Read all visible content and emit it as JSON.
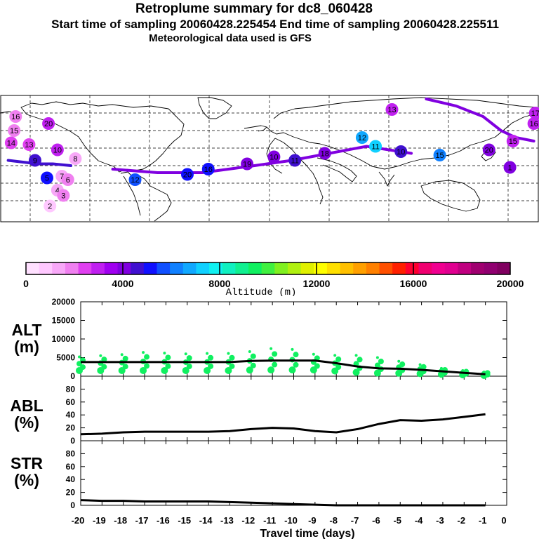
{
  "header": {
    "title": "Retroplume summary for dc8_060428",
    "subtitle": "Start time of sampling 20060428.225454     End time of sampling 20060428.225511",
    "met_line": "Meteorological data used is GFS"
  },
  "colorbar": {
    "label": "Altitude (m)",
    "ticks": [
      "0",
      "4000",
      "8000",
      "12000",
      "16000",
      "20000"
    ],
    "colors": [
      "#ffe0ff",
      "#ffc8ff",
      "#f8a8f8",
      "#f080f0",
      "#e040f0",
      "#c020f0",
      "#a000f0",
      "#8000e0",
      "#4010d0",
      "#1010ff",
      "#1050ff",
      "#1080ff",
      "#10a8ff",
      "#10d0ff",
      "#10f0f0",
      "#10f0c0",
      "#10f090",
      "#10f060",
      "#40f040",
      "#80f020",
      "#b0f010",
      "#e0f000",
      "#ffff00",
      "#ffe000",
      "#ffc000",
      "#ffa000",
      "#ff8000",
      "#ff5000",
      "#ff2000",
      "#ff0030",
      "#f00070",
      "#f00090",
      "#e00090",
      "#c00080",
      "#a00070",
      "#900070",
      "#800060"
    ]
  },
  "map": {
    "markers": [
      {
        "label": "16",
        "lon": -165,
        "lat": 70,
        "alt": 2000
      },
      {
        "label": "20",
        "lon": -143,
        "lat": 66,
        "alt": 2800
      },
      {
        "label": "15",
        "lon": -166,
        "lat": 62,
        "alt": 1800
      },
      {
        "label": "14",
        "lon": -168,
        "lat": 55,
        "alt": 2200
      },
      {
        "label": "13",
        "lon": -156,
        "lat": 54,
        "alt": 2400
      },
      {
        "label": "10",
        "lon": -137,
        "lat": 51,
        "alt": 3000
      },
      {
        "label": "9",
        "lon": -152,
        "lat": 45,
        "alt": 4800
      },
      {
        "label": "8",
        "lon": -125,
        "lat": 46,
        "alt": 1500
      },
      {
        "label": "7",
        "lon": -134,
        "lat": 36,
        "alt": 1400
      },
      {
        "label": "6",
        "lon": -130,
        "lat": 34,
        "alt": 1800
      },
      {
        "label": "5",
        "lon": -144,
        "lat": 35,
        "alt": 5200
      },
      {
        "label": "4",
        "lon": -137,
        "lat": 28,
        "alt": 1500
      },
      {
        "label": "3",
        "lon": -133,
        "lat": 25,
        "alt": 2000
      },
      {
        "label": "2",
        "lon": -142,
        "lat": 19,
        "alt": 900
      },
      {
        "label": "12",
        "lon": -85,
        "lat": 34,
        "alt": 5600
      },
      {
        "label": "20",
        "lon": -50,
        "lat": 37,
        "alt": 5400
      },
      {
        "label": "16",
        "lon": -36,
        "lat": 40,
        "alt": 5000
      },
      {
        "label": "19",
        "lon": -10,
        "lat": 43,
        "alt": 4300
      },
      {
        "label": "10",
        "lon": 8,
        "lat": 47,
        "alt": 4200
      },
      {
        "label": "11",
        "lon": 22,
        "lat": 45,
        "alt": 4400
      },
      {
        "label": "18",
        "lon": 42,
        "lat": 49,
        "alt": 4200
      },
      {
        "label": "12",
        "lon": 67,
        "lat": 58,
        "alt": 6500
      },
      {
        "label": "11",
        "lon": 76,
        "lat": 53,
        "alt": 7500
      },
      {
        "label": "10",
        "lon": 93,
        "lat": 50,
        "alt": 4500
      },
      {
        "label": "15",
        "lon": 119,
        "lat": 48,
        "alt": 6000
      },
      {
        "label": "13",
        "lon": 87,
        "lat": 74,
        "alt": 3200
      },
      {
        "label": "20",
        "lon": 152,
        "lat": 51,
        "alt": 3800
      },
      {
        "label": "1",
        "lon": 166,
        "lat": 41,
        "alt": 4100
      },
      {
        "label": "17",
        "lon": 183,
        "lat": 72,
        "alt": 3000
      },
      {
        "label": "16",
        "lon": 182,
        "lat": 66,
        "alt": 3200
      },
      {
        "label": "15",
        "lon": 168,
        "lat": 56,
        "alt": 3000
      }
    ],
    "tracks": [
      {
        "points": [
          [
            110,
            80
          ],
          [
            130,
            76
          ],
          [
            148,
            70
          ],
          [
            160,
            62
          ],
          [
            170,
            58
          ],
          [
            182,
            56
          ]
        ],
        "alt": 3800
      },
      {
        "points": [
          [
            -170,
            45
          ],
          [
            -150,
            43
          ],
          [
            -140,
            43
          ],
          [
            -128,
            42
          ]
        ],
        "alt": 4600
      },
      {
        "points": [
          [
            -100,
            40
          ],
          [
            -70,
            38
          ],
          [
            -40,
            38
          ],
          [
            -5,
            42
          ],
          [
            20,
            45
          ],
          [
            45,
            49
          ],
          [
            70,
            53
          ],
          [
            100,
            49
          ]
        ],
        "alt": 4300
      }
    ]
  },
  "chart_data": [
    {
      "type": "line",
      "panel": "ALT",
      "title": "ALT",
      "ylabel": "(m)",
      "xlabel": "Travel time (days)",
      "x": [
        -20,
        -19,
        -18,
        -17,
        -16,
        -15,
        -14,
        -13,
        -12,
        -11,
        -10,
        -9,
        -8,
        -7,
        -6,
        -5,
        -4,
        -3,
        -2,
        -1
      ],
      "values": [
        3800,
        3800,
        3800,
        3800,
        3800,
        3800,
        3800,
        3800,
        4100,
        4200,
        4200,
        4200,
        3500,
        2600,
        2100,
        2000,
        1700,
        1300,
        900,
        500
      ],
      "scatter_max": [
        5200,
        5500,
        5800,
        6400,
        6200,
        6000,
        6100,
        6100,
        6600,
        7400,
        7200,
        5900,
        5600,
        5600,
        5000,
        4000,
        3100,
        2100,
        1500,
        1100
      ],
      "ylim": [
        0,
        20000
      ],
      "yticks": [
        "0",
        "5000",
        "10000",
        "15000",
        "20000"
      ]
    },
    {
      "type": "line",
      "panel": "ABL",
      "title": "ABL",
      "ylabel": "(%)",
      "xlabel": "Travel time (days)",
      "x": [
        -20,
        -19,
        -18,
        -17,
        -16,
        -15,
        -14,
        -13,
        -12,
        -11,
        -10,
        -9,
        -8,
        -7,
        -6,
        -5,
        -4,
        -3,
        -2,
        -1
      ],
      "values": [
        10,
        11,
        13,
        14,
        14,
        14,
        14,
        15,
        18,
        20,
        19,
        15,
        13,
        18,
        26,
        32,
        31,
        33,
        37,
        41
      ],
      "ylim": [
        0,
        100
      ],
      "yticks": [
        "0",
        "20",
        "40",
        "60",
        "80"
      ]
    },
    {
      "type": "line",
      "panel": "STR",
      "title": "STR",
      "ylabel": "(%)",
      "xlabel": "Travel time (days)",
      "x": [
        -20,
        -19,
        -18,
        -17,
        -16,
        -15,
        -14,
        -13,
        -12,
        -11,
        -10,
        -9,
        -8,
        -7,
        -6,
        -5,
        -4,
        -3,
        -2,
        -1
      ],
      "values": [
        8,
        7,
        7,
        6,
        6,
        6,
        6,
        5,
        4,
        3,
        2,
        1,
        0,
        0,
        0,
        0,
        0,
        0,
        0,
        0
      ],
      "ylim": [
        0,
        100
      ],
      "yticks": [
        "0",
        "20",
        "40",
        "60",
        "80"
      ]
    }
  ],
  "xaxis": {
    "ticks": [
      "-20",
      "-19",
      "-18",
      "-17",
      "-16",
      "-15",
      "-14",
      "-13",
      "-12",
      "-11",
      "-10",
      "-9",
      "-8",
      "-7",
      "-6",
      "-5",
      "-4",
      "-3",
      "-2",
      "-1",
      "0"
    ],
    "label": "Travel time (days)"
  }
}
